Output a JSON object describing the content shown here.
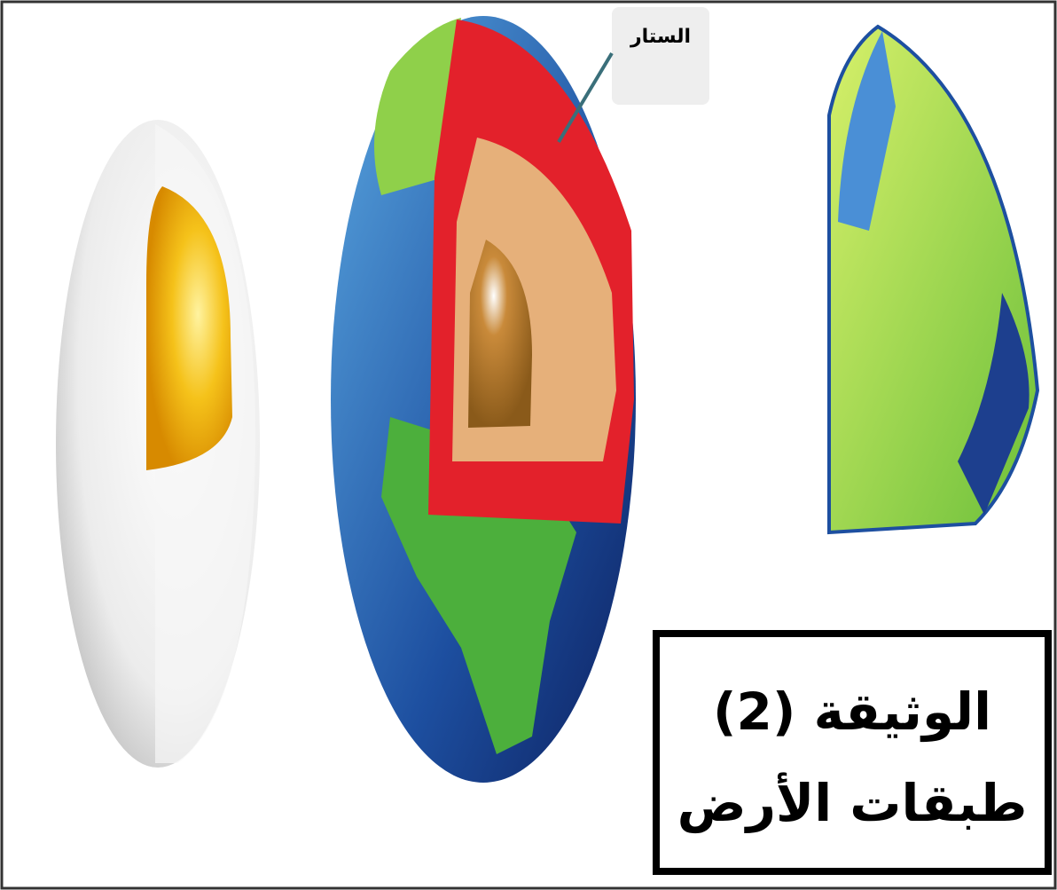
{
  "label": "الستار",
  "caption": {
    "line1": "الوثيقة (2)",
    "line2": "طبقات الأرض"
  }
}
